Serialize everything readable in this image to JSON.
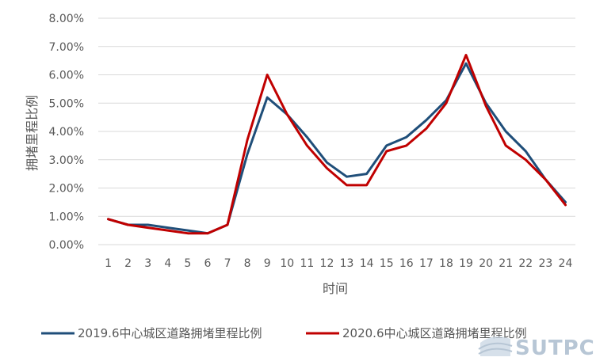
{
  "chart_data": {
    "type": "line",
    "title": "",
    "xlabel": "时间",
    "ylabel": "拥堵里程比例",
    "categories": [
      "1",
      "2",
      "3",
      "4",
      "5",
      "6",
      "7",
      "8",
      "9",
      "10",
      "11",
      "12",
      "13",
      "14",
      "15",
      "16",
      "17",
      "18",
      "19",
      "20",
      "21",
      "22",
      "23",
      "24"
    ],
    "y_ticks": [
      "0.00%",
      "1.00%",
      "2.00%",
      "3.00%",
      "4.00%",
      "5.00%",
      "6.00%",
      "7.00%",
      "8.00%"
    ],
    "ylim": [
      0,
      8
    ],
    "grid": true,
    "legend_position": "bottom",
    "series": [
      {
        "name": "2019.6中心城区道路拥堵里程比例",
        "color": "#1f4e79",
        "values": [
          0.9,
          0.7,
          0.7,
          0.6,
          0.5,
          0.4,
          0.7,
          3.2,
          5.2,
          4.6,
          3.8,
          2.9,
          2.4,
          2.5,
          3.5,
          3.8,
          4.4,
          5.1,
          6.4,
          5.0,
          4.0,
          3.3,
          2.3,
          1.5
        ]
      },
      {
        "name": "2020.6中心城区道路拥堵里程比例",
        "color": "#c00000",
        "values": [
          0.9,
          0.7,
          0.6,
          0.5,
          0.4,
          0.4,
          0.7,
          3.7,
          6.0,
          4.6,
          3.5,
          2.7,
          2.1,
          2.1,
          3.3,
          3.5,
          4.1,
          5.0,
          6.7,
          4.9,
          3.5,
          3.0,
          2.3,
          1.4
        ]
      }
    ]
  },
  "watermark": {
    "text": "SUTPC"
  }
}
